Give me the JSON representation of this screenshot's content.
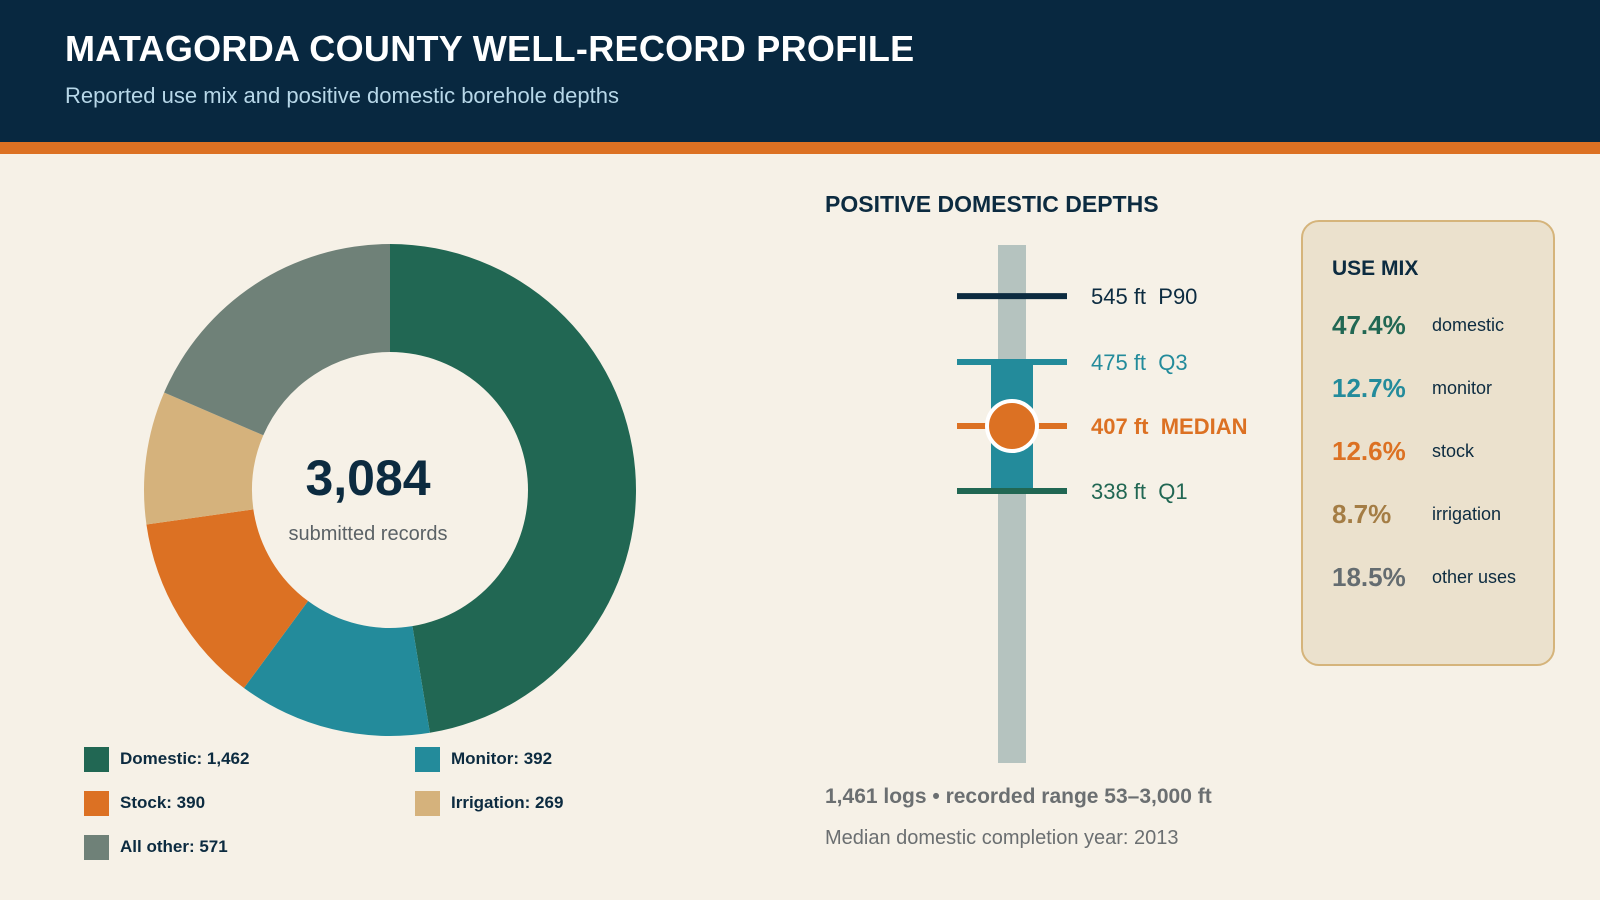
{
  "header": {
    "title": "MATAGORDA COUNTY WELL-RECORD PROFILE",
    "subtitle": "Reported use mix and positive domestic borehole depths"
  },
  "colors": {
    "header_bg": "#082840",
    "accent": "#dc7123",
    "background": "#f6f1e7",
    "domestic": "#216753",
    "monitor": "#238b9b",
    "stock": "#dc7123",
    "irrigation": "#d5b27c",
    "other": "#6f8178",
    "track": "#b5c3bf",
    "p90": "#0c2b40"
  },
  "donut": {
    "center_value": "3,084",
    "center_label": "submitted records"
  },
  "legend": [
    {
      "text": "Domestic: 1,462",
      "color": "#216753"
    },
    {
      "text": "Monitor: 392",
      "color": "#238b9b"
    },
    {
      "text": "Stock: 390",
      "color": "#dc7123"
    },
    {
      "text": "Irrigation: 269",
      "color": "#d5b27c"
    },
    {
      "text": "All other: 571",
      "color": "#6f8178"
    }
  ],
  "depth_panel": {
    "title": "POSITIVE DOMESTIC DEPTHS",
    "stat_line": "1,461 logs  •  recorded range 53–3,000 ft",
    "stat_sub": "Median domestic completion year: 2013"
  },
  "use_mix": {
    "title": "USE MIX",
    "rows": [
      {
        "pct": "47.4%",
        "label": "domestic",
        "color": "#216753"
      },
      {
        "pct": "12.7%",
        "label": "monitor",
        "color": "#238b9b"
      },
      {
        "pct": "12.6%",
        "label": "stock",
        "color": "#dc7123"
      },
      {
        "pct": "8.7%",
        "label": "irrigation",
        "color": "#a47d45"
      },
      {
        "pct": "18.5%",
        "label": "other uses",
        "color": "#646c70"
      }
    ]
  },
  "chart_data": [
    {
      "type": "pie",
      "style": "donut",
      "categories": [
        "Domestic",
        "Monitor",
        "Stock",
        "Irrigation",
        "All other"
      ],
      "values": [
        1462,
        392,
        390,
        269,
        571
      ],
      "total": 3084
    },
    {
      "type": "box",
      "unit": "ft",
      "markers": [
        {
          "key": "p90",
          "value": 545,
          "text": "545 ft  P90",
          "color": "#0c2b40"
        },
        {
          "key": "q3",
          "value": 475,
          "text": "475 ft  Q3",
          "color": "#238b9b"
        },
        {
          "key": "median",
          "value": 407,
          "text": "407 ft  MEDIAN",
          "color": "#dc7123"
        },
        {
          "key": "q1",
          "value": 338,
          "text": "338 ft  Q1",
          "color": "#216753"
        }
      ],
      "count": 1461,
      "range": [
        53,
        3000
      ]
    }
  ]
}
